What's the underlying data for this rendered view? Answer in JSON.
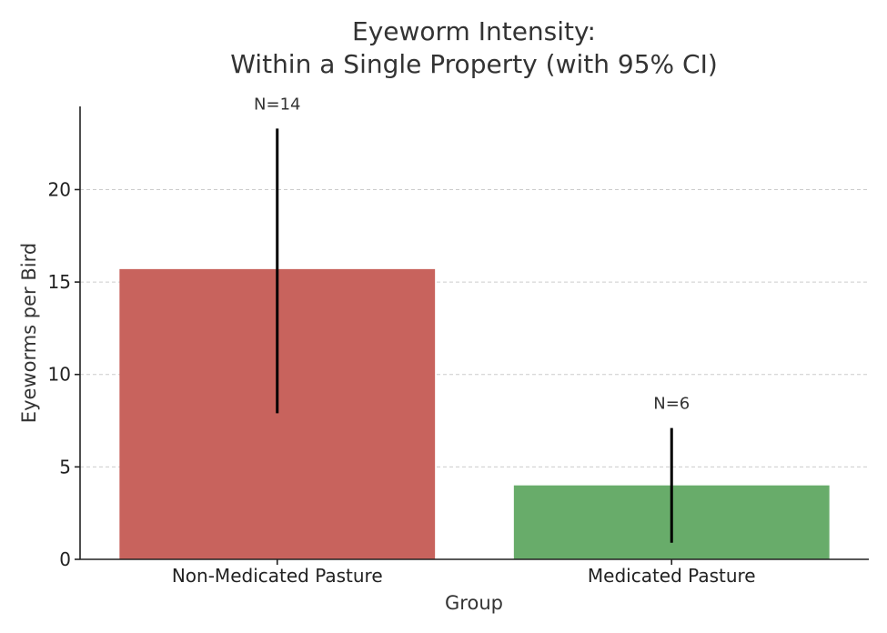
{
  "chart_data": {
    "type": "bar",
    "title": [
      "Eyeworm Intensity:",
      "Within a Single Property (with 95% CI)"
    ],
    "xlabel": "Group",
    "ylabel": "Eyeworms per Bird",
    "categories": [
      "Non-Medicated Pasture",
      "Medicated Pasture"
    ],
    "values": [
      15.7,
      4.0
    ],
    "ci_lower": [
      7.9,
      0.9
    ],
    "ci_upper": [
      23.3,
      7.1
    ],
    "annotations": [
      "N=14",
      "N=6"
    ],
    "colors": [
      "#c8635d",
      "#68ac6a"
    ],
    "ylim": [
      0,
      24.5
    ],
    "yticks": [
      0,
      5,
      10,
      15,
      20
    ],
    "grid": "y-dashed",
    "legend": "none"
  }
}
